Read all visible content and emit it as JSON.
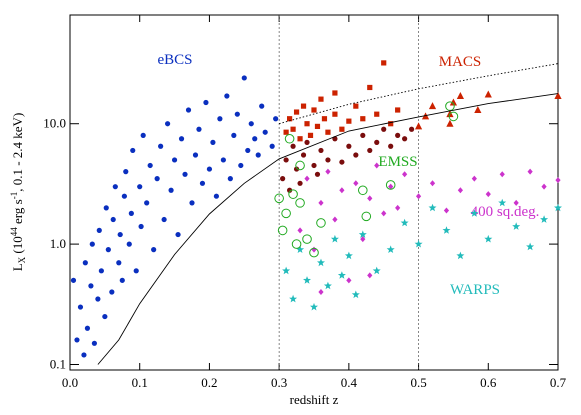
{
  "chart_data": {
    "type": "scatter",
    "xlabel": "redshift z",
    "ylabel": [
      "L",
      "X",
      " (10",
      "44",
      " erg s",
      "-1",
      ", 0.1 - 2.4 keV)"
    ],
    "xlim": [
      0,
      0.7
    ],
    "ylim": [
      0.09,
      80
    ],
    "log_y": true,
    "xticks": [
      {
        "value": 0,
        "label": "0.0"
      },
      0.1,
      0.2,
      0.3,
      0.4,
      0.5,
      0.6,
      0.7
    ],
    "yticks": [
      0.1,
      {
        "value": 1,
        "label": "1.0"
      },
      {
        "value": 10,
        "label": "10.0"
      }
    ],
    "vlines": [
      0.3,
      0.5
    ],
    "series": [
      {
        "name": "eBCS",
        "color": "#0a2fbf",
        "marker": "circle",
        "x": [
          0.005,
          0.01,
          0.015,
          0.02,
          0.022,
          0.025,
          0.03,
          0.032,
          0.035,
          0.04,
          0.042,
          0.045,
          0.05,
          0.052,
          0.055,
          0.06,
          0.062,
          0.065,
          0.07,
          0.072,
          0.075,
          0.078,
          0.08,
          0.085,
          0.088,
          0.09,
          0.095,
          0.1,
          0.102,
          0.105,
          0.11,
          0.115,
          0.12,
          0.125,
          0.13,
          0.135,
          0.14,
          0.145,
          0.15,
          0.155,
          0.16,
          0.165,
          0.17,
          0.175,
          0.18,
          0.185,
          0.19,
          0.195,
          0.2,
          0.205,
          0.21,
          0.215,
          0.22,
          0.225,
          0.23,
          0.235,
          0.24,
          0.245,
          0.25,
          0.255,
          0.26,
          0.265,
          0.27,
          0.275,
          0.28,
          0.29,
          0.295
        ],
        "values": [
          0.5,
          0.16,
          0.3,
          0.12,
          0.7,
          0.2,
          0.45,
          1.0,
          0.15,
          0.35,
          1.3,
          0.6,
          0.25,
          2.0,
          0.9,
          0.4,
          1.6,
          3.0,
          0.7,
          1.2,
          0.5,
          2.5,
          4.0,
          1.0,
          1.8,
          6.0,
          0.6,
          3.0,
          1.4,
          8.0,
          2.2,
          4.5,
          0.9,
          3.5,
          6.5,
          1.6,
          10.0,
          2.8,
          5.0,
          1.2,
          7.5,
          3.8,
          13.0,
          2.2,
          5.5,
          9.0,
          3.2,
          15.0,
          4.2,
          7.0,
          2.5,
          11.0,
          5.0,
          17.0,
          3.5,
          8.0,
          12.0,
          4.5,
          24.0,
          6.0,
          10.0,
          7.5,
          5.5,
          14.0,
          8.5,
          6.5,
          11.0
        ]
      },
      {
        "name": "MACS",
        "color": "#cc2200",
        "marker": "square",
        "x": [
          0.31,
          0.315,
          0.32,
          0.325,
          0.33,
          0.335,
          0.34,
          0.345,
          0.35,
          0.355,
          0.36,
          0.365,
          0.37,
          0.38,
          0.39,
          0.4,
          0.41,
          0.42,
          0.43,
          0.44,
          0.45,
          0.46,
          0.47,
          0.38
        ],
        "values": [
          8.5,
          11,
          9,
          12.5,
          7.5,
          14,
          10,
          8,
          13,
          9.5,
          16,
          11,
          8.5,
          12,
          9,
          10.5,
          14,
          11,
          20,
          12,
          32,
          10,
          13,
          18
        ]
      },
      {
        "color": "#cc2200",
        "marker": "triangle",
        "x": [
          0.5,
          0.51,
          0.52,
          0.545,
          0.55,
          0.56,
          0.585,
          0.6,
          0.7,
          0.545
        ],
        "values": [
          9.5,
          11.5,
          14,
          12,
          15,
          17,
          13,
          17.5,
          17,
          10
        ]
      },
      {
        "color": "#7a0d0d",
        "marker": "circle",
        "x": [
          0.305,
          0.31,
          0.315,
          0.32,
          0.325,
          0.33,
          0.335,
          0.34,
          0.35,
          0.355,
          0.36,
          0.37,
          0.38,
          0.39,
          0.4,
          0.41,
          0.42,
          0.43,
          0.44,
          0.45,
          0.46,
          0.47,
          0.48,
          0.49
        ],
        "values": [
          3.5,
          5,
          2.8,
          6.5,
          4.2,
          3.2,
          5.5,
          7,
          4.5,
          3.8,
          6,
          5,
          7.5,
          4.8,
          6.5,
          5.5,
          8,
          6,
          7,
          9,
          6.5,
          8,
          7.5,
          9
        ]
      },
      {
        "name": "400 sq.deg.",
        "color": "#cc33cc",
        "marker": "diamond",
        "x": [
          0.33,
          0.34,
          0.35,
          0.36,
          0.37,
          0.38,
          0.39,
          0.4,
          0.41,
          0.42,
          0.43,
          0.44,
          0.45,
          0.46,
          0.47,
          0.48,
          0.5,
          0.52,
          0.54,
          0.56,
          0.58,
          0.6,
          0.62,
          0.64,
          0.66,
          0.68,
          0.7,
          0.36,
          0.43
        ],
        "values": [
          1.3,
          3.5,
          0.9,
          2.2,
          4.0,
          1.6,
          2.8,
          0.5,
          3.2,
          1.1,
          2.4,
          4.5,
          1.8,
          3.0,
          2.0,
          3.8,
          2.5,
          3.2,
          1.9,
          2.8,
          3.5,
          2.6,
          3.8,
          2.2,
          4.0,
          3.0,
          3.4,
          0.4,
          0.55
        ]
      },
      {
        "name": "WARPS",
        "color": "#22bbbb",
        "marker": "star",
        "x": [
          0.31,
          0.32,
          0.33,
          0.34,
          0.35,
          0.36,
          0.37,
          0.38,
          0.39,
          0.4,
          0.41,
          0.42,
          0.44,
          0.46,
          0.48,
          0.5,
          0.52,
          0.54,
          0.56,
          0.58,
          0.6,
          0.62,
          0.64,
          0.68,
          0.7,
          0.66
        ],
        "values": [
          0.6,
          0.35,
          0.9,
          0.5,
          0.3,
          0.7,
          0.45,
          1.1,
          0.55,
          0.8,
          0.38,
          1.2,
          0.6,
          0.9,
          1.5,
          1.0,
          2.0,
          1.3,
          0.8,
          1.8,
          1.1,
          2.2,
          1.4,
          1.6,
          2.0,
          0.95
        ]
      },
      {
        "name": "EMSS",
        "color": "#22aa22",
        "marker": "open-circle",
        "x": [
          0.3,
          0.305,
          0.31,
          0.315,
          0.32,
          0.325,
          0.33,
          0.34,
          0.35,
          0.36,
          0.42,
          0.425,
          0.46,
          0.55,
          0.545,
          0.33
        ],
        "values": [
          2.4,
          1.3,
          1.8,
          7.5,
          2.6,
          1.0,
          4.5,
          1.1,
          0.85,
          1.5,
          2.8,
          1.7,
          3.1,
          11.5,
          14,
          2.2
        ]
      },
      {
        "color": "#000000",
        "marker": "line",
        "dash": "solid",
        "x": [
          0.04,
          0.07,
          0.1,
          0.15,
          0.2,
          0.25,
          0.3,
          0.4,
          0.5,
          0.6,
          0.7
        ],
        "values": [
          0.1,
          0.16,
          0.32,
          0.82,
          1.78,
          3.2,
          5.1,
          8.7,
          11.4,
          14.7,
          17.8
        ]
      },
      {
        "color": "#000000",
        "marker": "line",
        "dash": "dotted",
        "x": [
          0.3,
          0.4,
          0.5,
          0.6,
          0.7
        ],
        "values": [
          10,
          14.5,
          19.5,
          25,
          31.6
        ]
      }
    ]
  }
}
